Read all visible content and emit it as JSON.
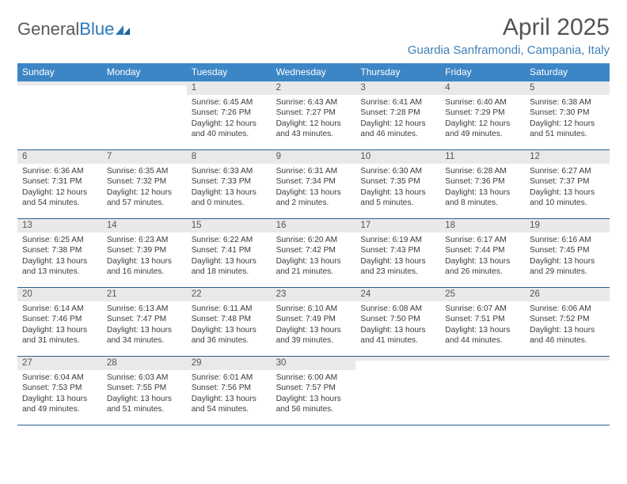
{
  "brand": {
    "part1": "General",
    "part2": "Blue"
  },
  "title": "April 2025",
  "location": "Guardia Sanframondi, Campania, Italy",
  "colors": {
    "header_bg": "#3d86c6",
    "accent": "#3d7fb8",
    "rule": "#2a5f8e",
    "daynum_bg": "#e9e9e9"
  },
  "weekdays": [
    "Sunday",
    "Monday",
    "Tuesday",
    "Wednesday",
    "Thursday",
    "Friday",
    "Saturday"
  ],
  "weeks": [
    [
      {
        "day": "",
        "sunrise": "",
        "sunset": "",
        "daylight": ""
      },
      {
        "day": "",
        "sunrise": "",
        "sunset": "",
        "daylight": ""
      },
      {
        "day": "1",
        "sunrise": "6:45 AM",
        "sunset": "7:26 PM",
        "daylight": "12 hours and 40 minutes."
      },
      {
        "day": "2",
        "sunrise": "6:43 AM",
        "sunset": "7:27 PM",
        "daylight": "12 hours and 43 minutes."
      },
      {
        "day": "3",
        "sunrise": "6:41 AM",
        "sunset": "7:28 PM",
        "daylight": "12 hours and 46 minutes."
      },
      {
        "day": "4",
        "sunrise": "6:40 AM",
        "sunset": "7:29 PM",
        "daylight": "12 hours and 49 minutes."
      },
      {
        "day": "5",
        "sunrise": "6:38 AM",
        "sunset": "7:30 PM",
        "daylight": "12 hours and 51 minutes."
      }
    ],
    [
      {
        "day": "6",
        "sunrise": "6:36 AM",
        "sunset": "7:31 PM",
        "daylight": "12 hours and 54 minutes."
      },
      {
        "day": "7",
        "sunrise": "6:35 AM",
        "sunset": "7:32 PM",
        "daylight": "12 hours and 57 minutes."
      },
      {
        "day": "8",
        "sunrise": "6:33 AM",
        "sunset": "7:33 PM",
        "daylight": "13 hours and 0 minutes."
      },
      {
        "day": "9",
        "sunrise": "6:31 AM",
        "sunset": "7:34 PM",
        "daylight": "13 hours and 2 minutes."
      },
      {
        "day": "10",
        "sunrise": "6:30 AM",
        "sunset": "7:35 PM",
        "daylight": "13 hours and 5 minutes."
      },
      {
        "day": "11",
        "sunrise": "6:28 AM",
        "sunset": "7:36 PM",
        "daylight": "13 hours and 8 minutes."
      },
      {
        "day": "12",
        "sunrise": "6:27 AM",
        "sunset": "7:37 PM",
        "daylight": "13 hours and 10 minutes."
      }
    ],
    [
      {
        "day": "13",
        "sunrise": "6:25 AM",
        "sunset": "7:38 PM",
        "daylight": "13 hours and 13 minutes."
      },
      {
        "day": "14",
        "sunrise": "6:23 AM",
        "sunset": "7:39 PM",
        "daylight": "13 hours and 16 minutes."
      },
      {
        "day": "15",
        "sunrise": "6:22 AM",
        "sunset": "7:41 PM",
        "daylight": "13 hours and 18 minutes."
      },
      {
        "day": "16",
        "sunrise": "6:20 AM",
        "sunset": "7:42 PM",
        "daylight": "13 hours and 21 minutes."
      },
      {
        "day": "17",
        "sunrise": "6:19 AM",
        "sunset": "7:43 PM",
        "daylight": "13 hours and 23 minutes."
      },
      {
        "day": "18",
        "sunrise": "6:17 AM",
        "sunset": "7:44 PM",
        "daylight": "13 hours and 26 minutes."
      },
      {
        "day": "19",
        "sunrise": "6:16 AM",
        "sunset": "7:45 PM",
        "daylight": "13 hours and 29 minutes."
      }
    ],
    [
      {
        "day": "20",
        "sunrise": "6:14 AM",
        "sunset": "7:46 PM",
        "daylight": "13 hours and 31 minutes."
      },
      {
        "day": "21",
        "sunrise": "6:13 AM",
        "sunset": "7:47 PM",
        "daylight": "13 hours and 34 minutes."
      },
      {
        "day": "22",
        "sunrise": "6:11 AM",
        "sunset": "7:48 PM",
        "daylight": "13 hours and 36 minutes."
      },
      {
        "day": "23",
        "sunrise": "6:10 AM",
        "sunset": "7:49 PM",
        "daylight": "13 hours and 39 minutes."
      },
      {
        "day": "24",
        "sunrise": "6:08 AM",
        "sunset": "7:50 PM",
        "daylight": "13 hours and 41 minutes."
      },
      {
        "day": "25",
        "sunrise": "6:07 AM",
        "sunset": "7:51 PM",
        "daylight": "13 hours and 44 minutes."
      },
      {
        "day": "26",
        "sunrise": "6:06 AM",
        "sunset": "7:52 PM",
        "daylight": "13 hours and 46 minutes."
      }
    ],
    [
      {
        "day": "27",
        "sunrise": "6:04 AM",
        "sunset": "7:53 PM",
        "daylight": "13 hours and 49 minutes."
      },
      {
        "day": "28",
        "sunrise": "6:03 AM",
        "sunset": "7:55 PM",
        "daylight": "13 hours and 51 minutes."
      },
      {
        "day": "29",
        "sunrise": "6:01 AM",
        "sunset": "7:56 PM",
        "daylight": "13 hours and 54 minutes."
      },
      {
        "day": "30",
        "sunrise": "6:00 AM",
        "sunset": "7:57 PM",
        "daylight": "13 hours and 56 minutes."
      },
      {
        "day": "",
        "sunrise": "",
        "sunset": "",
        "daylight": ""
      },
      {
        "day": "",
        "sunrise": "",
        "sunset": "",
        "daylight": ""
      },
      {
        "day": "",
        "sunrise": "",
        "sunset": "",
        "daylight": ""
      }
    ]
  ]
}
